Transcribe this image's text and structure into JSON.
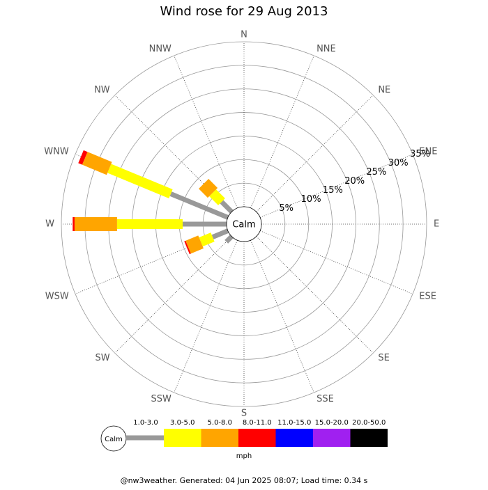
{
  "chart_data": {
    "type": "windrose",
    "title": "Wind rose for 29 Aug 2013",
    "directions": [
      "N",
      "NNE",
      "NE",
      "ENE",
      "E",
      "ESE",
      "SE",
      "SSE",
      "S",
      "SSW",
      "SW",
      "WSW",
      "W",
      "WNW",
      "NW",
      "NNW"
    ],
    "center_label": "Calm",
    "rlim": [
      0,
      35
    ],
    "rticks": [
      {
        "value": 5,
        "label": "5%"
      },
      {
        "value": 10,
        "label": "10%"
      },
      {
        "value": 15,
        "label": "15%"
      },
      {
        "value": 20,
        "label": "20%"
      },
      {
        "value": 25,
        "label": "25%"
      },
      {
        "value": 30,
        "label": "30%"
      },
      {
        "value": 35,
        "label": "35%"
      }
    ],
    "series": [
      {
        "name": "1.0-3.0",
        "color": "#999999",
        "values": [
          0,
          0,
          0,
          0,
          0,
          0,
          0,
          0,
          0,
          0,
          1.6,
          3.5,
          9.3,
          13.1,
          3.0,
          0
        ]
      },
      {
        "name": "3.0-5.0",
        "color": "#ffff00",
        "values": [
          0,
          0,
          0,
          0,
          0,
          0,
          0,
          0,
          0,
          0,
          0,
          2.7,
          13.9,
          14.1,
          2.7,
          0
        ]
      },
      {
        "name": "5.0-8.0",
        "color": "#ffa500",
        "values": [
          0,
          0,
          0,
          0,
          0,
          0,
          0,
          0,
          0,
          0,
          0,
          2.9,
          9.0,
          5.6,
          2.7,
          0
        ]
      },
      {
        "name": "8.0-11.0",
        "color": "#ff0000",
        "values": [
          0,
          0,
          0,
          0,
          0,
          0,
          0,
          0,
          0,
          0,
          0,
          0.3,
          0.4,
          0.9,
          0,
          0
        ]
      },
      {
        "name": "11.0-15.0",
        "color": "#0000ff",
        "values": [
          0,
          0,
          0,
          0,
          0,
          0,
          0,
          0,
          0,
          0,
          0,
          0,
          0,
          0,
          0,
          0
        ]
      },
      {
        "name": "15.0-20.0",
        "color": "#a020f0",
        "values": [
          0,
          0,
          0,
          0,
          0,
          0,
          0,
          0,
          0,
          0,
          0,
          0,
          0,
          0,
          0,
          0
        ]
      },
      {
        "name": "20.0-50.0",
        "color": "#000000",
        "values": [
          0,
          0,
          0,
          0,
          0,
          0,
          0,
          0,
          0,
          0,
          0,
          0,
          0,
          0,
          0,
          0
        ]
      }
    ],
    "legend_unit": "mph",
    "footer": "@nw3weather. Generated: 04 Jun 2025 08:07; Load time: 0.34 s"
  }
}
